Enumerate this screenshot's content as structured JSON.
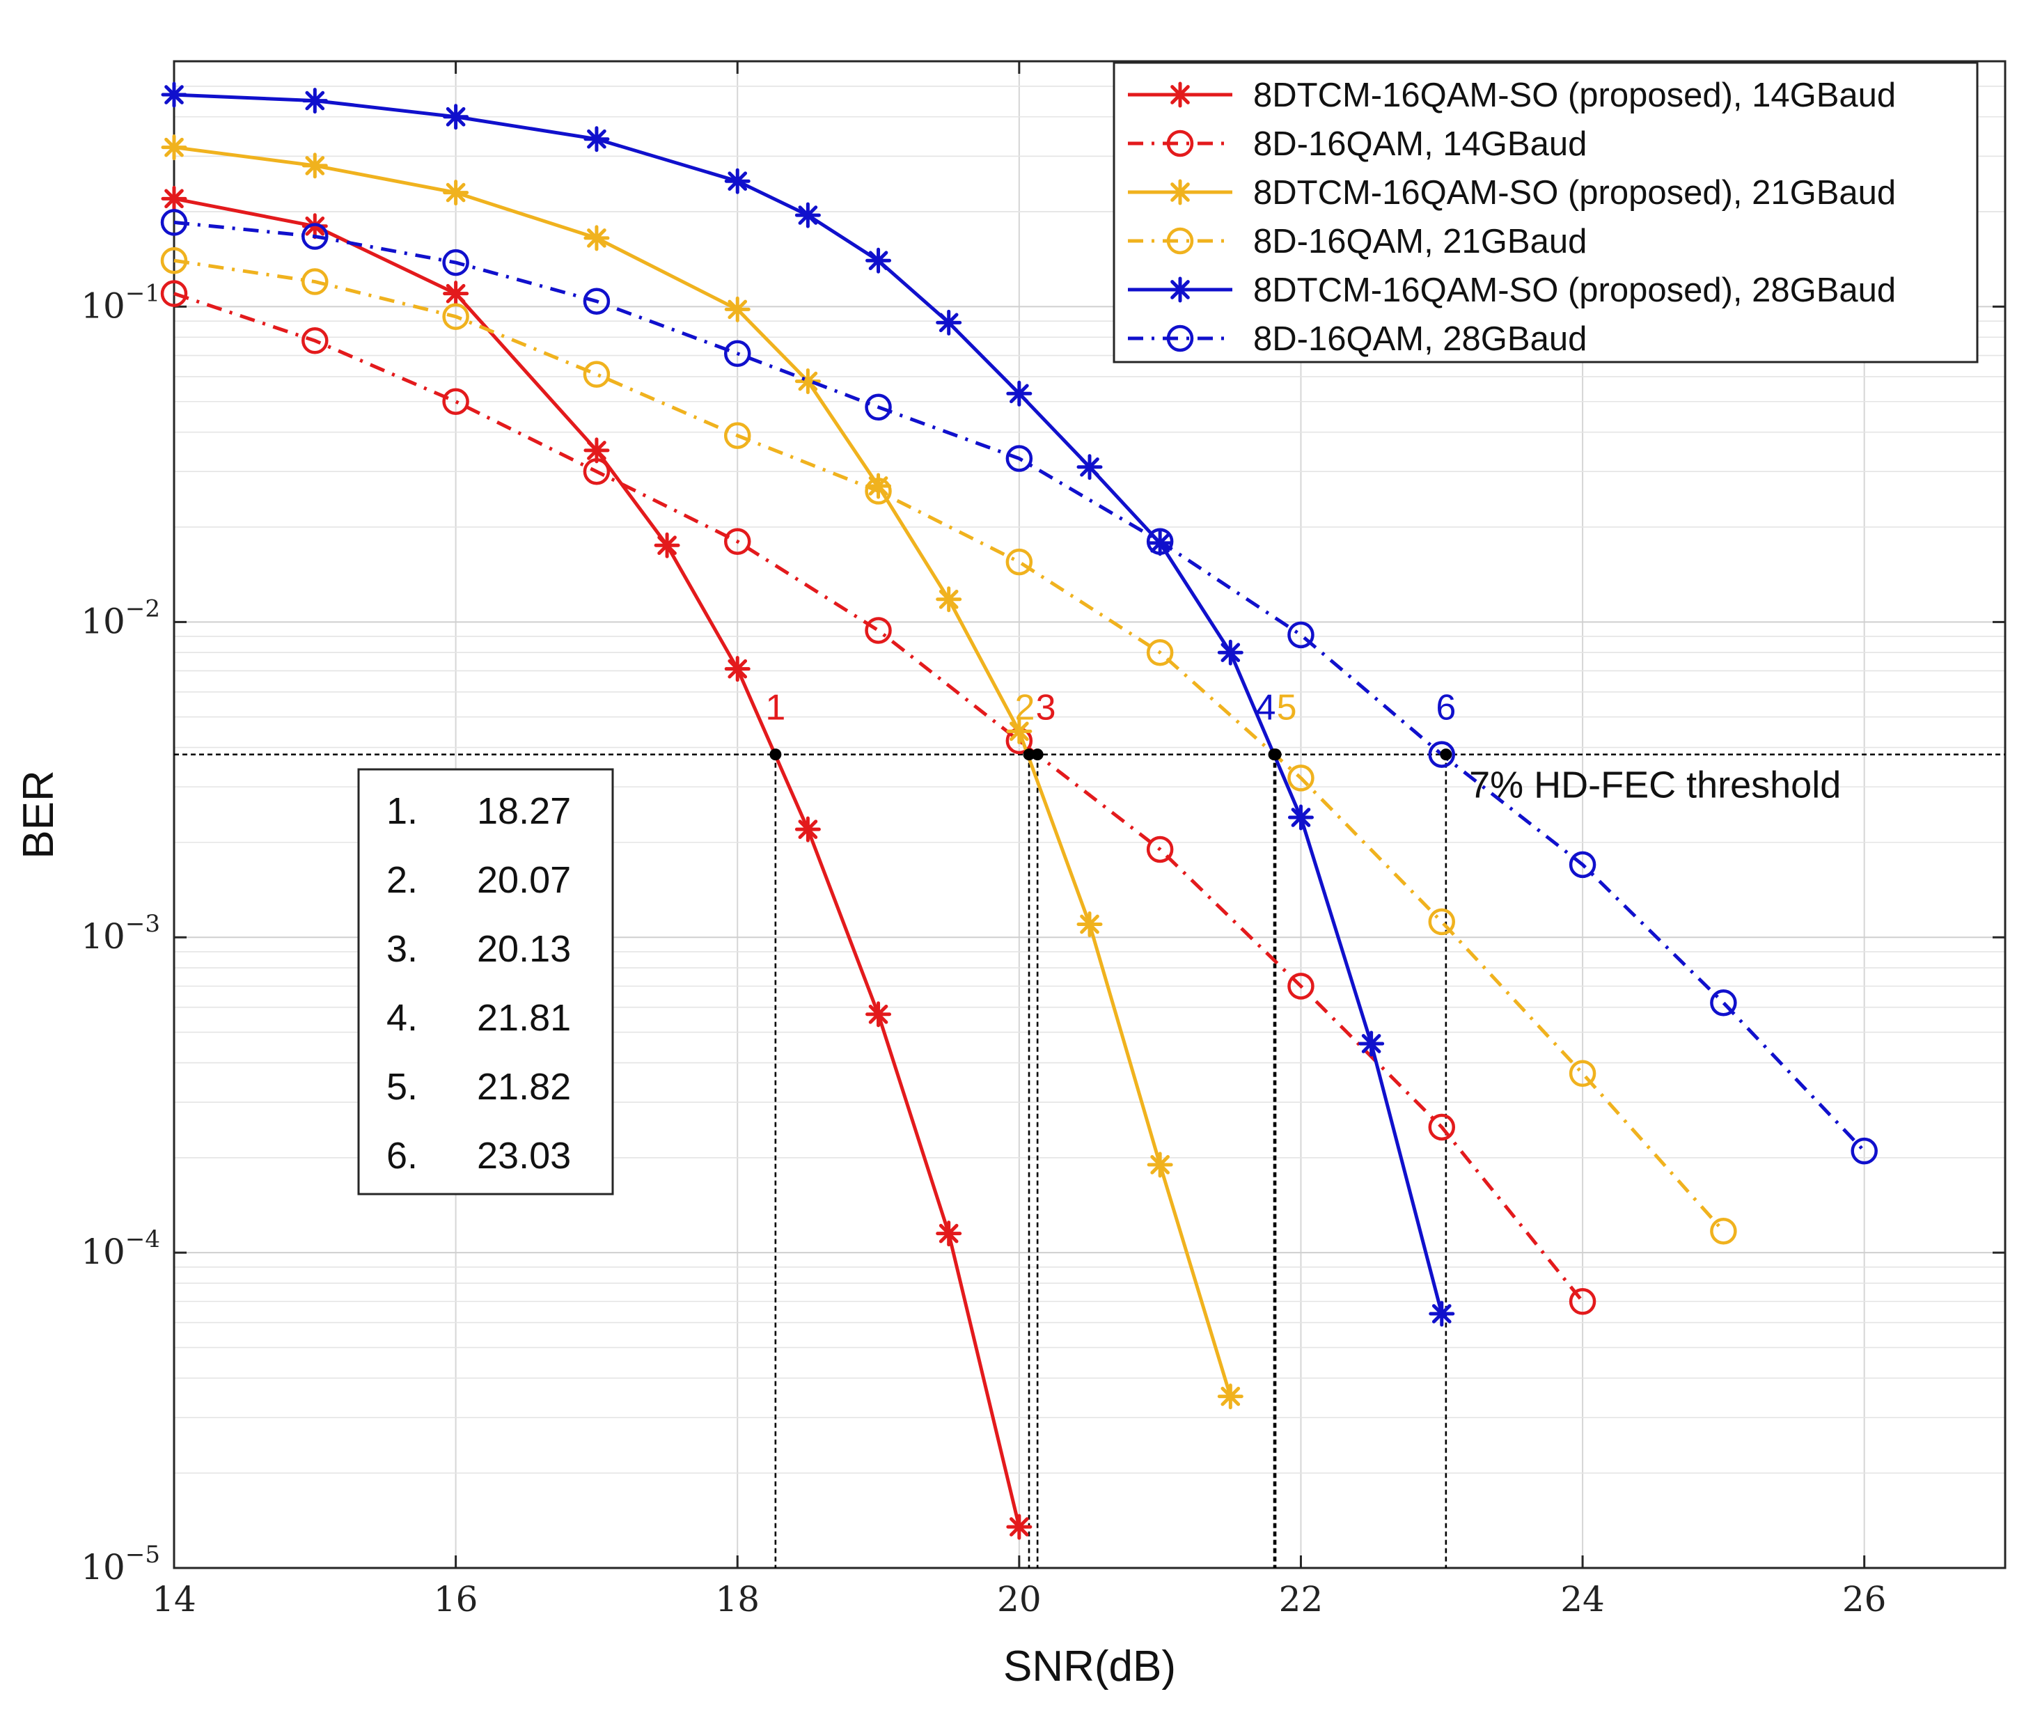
{
  "chart_data": {
    "type": "line",
    "xlabel": "SNR(dB)",
    "ylabel": "BER",
    "xlim": [
      14,
      27
    ],
    "ylim": [
      1e-05,
      0.6
    ],
    "yscale": "log",
    "grid": true,
    "x_ticks": [
      14,
      16,
      18,
      20,
      22,
      24,
      26
    ],
    "x_tick_labels": [
      "14",
      "16",
      "18",
      "20",
      "22",
      "24",
      "26"
    ],
    "y_ticks": [
      {
        "value": 0.1,
        "base": "10",
        "exp": "−1"
      },
      {
        "value": 0.01,
        "base": "10",
        "exp": "−2"
      },
      {
        "value": 0.001,
        "base": "10",
        "exp": "−3"
      },
      {
        "value": 0.0001,
        "base": "10",
        "exp": "−4"
      },
      {
        "value": 1e-05,
        "base": "10",
        "exp": "−5"
      }
    ],
    "legend_position": "top-right",
    "series": [
      {
        "name": "8DTCM-16QAM-SO (proposed), 14GBaud",
        "color": "#e31a1c",
        "line": "solid",
        "marker": "asterisk",
        "x": [
          14,
          15,
          16,
          17,
          17.5,
          18,
          18.5,
          19,
          19.5,
          20
        ],
        "y": [
          0.22,
          0.18,
          0.11,
          0.035,
          0.0175,
          0.0071,
          0.0022,
          0.00057,
          0.000115,
          1.35e-05
        ]
      },
      {
        "name": "8D-16QAM, 14GBaud",
        "color": "#e31a1c",
        "line": "dashdot",
        "marker": "circle",
        "x": [
          14,
          15,
          16,
          17,
          18,
          19,
          20,
          21,
          22,
          23,
          24
        ],
        "y": [
          0.11,
          0.078,
          0.05,
          0.03,
          0.018,
          0.0094,
          0.0042,
          0.0019,
          0.0007,
          0.00025,
          7e-05
        ]
      },
      {
        "name": "8DTCM-16QAM-SO (proposed), 21GBaud",
        "color": "#f0b21e",
        "line": "solid",
        "marker": "asterisk",
        "x": [
          14,
          15,
          16,
          17,
          18,
          18.5,
          19,
          19.5,
          20,
          20.5,
          21,
          21.5
        ],
        "y": [
          0.32,
          0.28,
          0.23,
          0.165,
          0.098,
          0.058,
          0.027,
          0.0118,
          0.0045,
          0.0011,
          0.00019,
          3.5e-05
        ]
      },
      {
        "name": "8D-16QAM, 21GBaud",
        "color": "#f0b21e",
        "line": "dashdot",
        "marker": "circle",
        "x": [
          14,
          15,
          16,
          17,
          18,
          19,
          20,
          21,
          22,
          23,
          24,
          25
        ],
        "y": [
          0.14,
          0.12,
          0.093,
          0.061,
          0.039,
          0.026,
          0.0155,
          0.008,
          0.0032,
          0.00112,
          0.00037,
          0.000117
        ]
      },
      {
        "name": "8DTCM-16QAM-SO (proposed), 28GBaud",
        "color": "#1010cc",
        "line": "solid",
        "marker": "asterisk",
        "x": [
          14,
          15,
          16,
          17,
          18,
          18.5,
          19,
          19.5,
          20,
          20.5,
          21,
          21.5,
          22,
          22.5,
          23
        ],
        "y": [
          0.47,
          0.45,
          0.4,
          0.34,
          0.25,
          0.195,
          0.14,
          0.089,
          0.053,
          0.031,
          0.0178,
          0.008,
          0.0024,
          0.00046,
          6.4e-05
        ]
      },
      {
        "name": "8D-16QAM, 28GBaud",
        "color": "#1010cc",
        "line": "dashdot",
        "marker": "circle",
        "x": [
          14,
          15,
          16,
          17,
          18,
          19,
          20,
          21,
          22,
          23,
          24,
          25,
          26
        ],
        "y": [
          0.185,
          0.167,
          0.138,
          0.104,
          0.071,
          0.048,
          0.033,
          0.018,
          0.0091,
          0.0038,
          0.0017,
          0.00062,
          0.00021
        ]
      }
    ],
    "threshold": {
      "value": 0.0038,
      "label": "7% HD-FEC threshold"
    },
    "crossings": [
      {
        "label": "1",
        "x": 18.27,
        "color": "#e31a1c",
        "dx": 0
      },
      {
        "label": "2",
        "x": 20.07,
        "color": "#f0b21e",
        "dx": -6
      },
      {
        "label": "3",
        "x": 20.13,
        "color": "#e31a1c",
        "dx": 12
      },
      {
        "label": "4",
        "x": 21.81,
        "color": "#1010cc",
        "dx": -12
      },
      {
        "label": "5",
        "x": 21.82,
        "color": "#f0b21e",
        "dx": 16
      },
      {
        "label": "6",
        "x": 23.03,
        "color": "#1010cc",
        "dx": 0
      }
    ],
    "table": [
      {
        "index": "1.",
        "value": "18.27"
      },
      {
        "index": "2.",
        "value": "20.07"
      },
      {
        "index": "3.",
        "value": "20.13"
      },
      {
        "index": "4.",
        "value": "21.81"
      },
      {
        "index": "5.",
        "value": "21.82"
      },
      {
        "index": "6.",
        "value": "23.03"
      }
    ]
  }
}
